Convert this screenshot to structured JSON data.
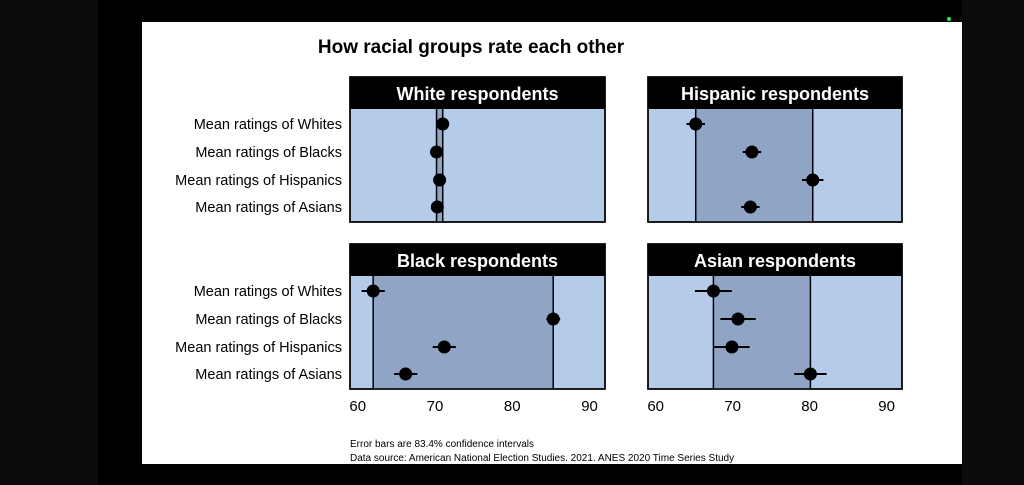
{
  "chart_data": {
    "type": "scatter",
    "title": "How racial groups rate each other",
    "row_labels": [
      "Mean ratings of Whites",
      "Mean ratings of Blacks",
      "Mean ratings of Hispanics",
      "Mean ratings of Asians"
    ],
    "xticks": [
      60,
      70,
      80,
      90
    ],
    "xlim": [
      59,
      92
    ],
    "panels": [
      {
        "title": "White respondents",
        "values": [
          71.0,
          70.2,
          70.6,
          70.3
        ],
        "errors": [
          0.5,
          0.4,
          0.5,
          0.5
        ],
        "band": [
          70.2,
          71.0
        ]
      },
      {
        "title": "Hispanic respondents",
        "values": [
          65.2,
          72.5,
          80.4,
          72.3
        ],
        "errors": [
          1.2,
          1.2,
          1.4,
          1.2
        ],
        "band": [
          65.2,
          80.4
        ]
      },
      {
        "title": "Black respondents",
        "values": [
          62.0,
          85.3,
          71.2,
          66.2
        ],
        "errors": [
          1.5,
          0.9,
          1.5,
          1.5
        ],
        "band": [
          62.0,
          85.3
        ]
      },
      {
        "title": "Asian respondents",
        "values": [
          67.5,
          70.7,
          69.9,
          80.1
        ],
        "errors": [
          2.4,
          2.3,
          2.3,
          2.1
        ],
        "band": [
          67.5,
          80.1
        ]
      }
    ],
    "notes": [
      "Error bars are 83.4% confidence intervals",
      "Data source: American National Election Studies. 2021. ANES 2020 Time Series Study"
    ],
    "colors": {
      "panel_bg": "#b4cbea",
      "band": "#90a5c6",
      "header_bg": "#000000",
      "marker": "#000000"
    }
  }
}
